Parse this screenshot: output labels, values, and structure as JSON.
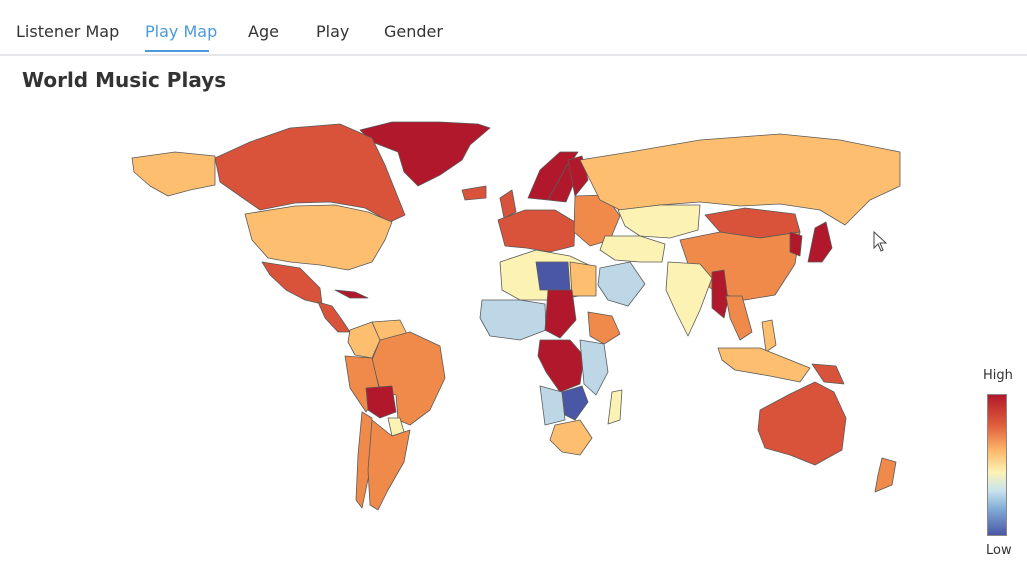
{
  "tabs": [
    {
      "label": "Listener Map",
      "active": false
    },
    {
      "label": "Play Map",
      "active": true
    },
    {
      "label": "Age",
      "active": false
    },
    {
      "label": "Play",
      "active": false
    },
    {
      "label": "Gender",
      "active": false
    }
  ],
  "page": {
    "title": "World Music Plays"
  },
  "legend": {
    "high_label": "High",
    "low_label": "Low"
  },
  "colors": {
    "accent": "#4b9ad9",
    "very_high": "#b2182b",
    "high": "#d9533b",
    "mid_high": "#f08a4b",
    "mid": "#fdbe6f",
    "mid_low": "#fcf2b4",
    "low": "#bdd7e7",
    "very_low": "#4a57a6",
    "no_data": "#f0f0f0"
  },
  "chart_data": {
    "type": "choropleth",
    "title": "World Music Plays",
    "legend_placement": "right",
    "scale": {
      "high_label": "High",
      "low_label": "Low"
    },
    "regions": [
      {
        "name": "Greenland",
        "level": "very-high"
      },
      {
        "name": "Canada",
        "level": "high"
      },
      {
        "name": "Alaska",
        "level": "mid"
      },
      {
        "name": "United States",
        "level": "mid"
      },
      {
        "name": "Mexico",
        "level": "high"
      },
      {
        "name": "Central America",
        "level": "high"
      },
      {
        "name": "Cuba",
        "level": "very-high"
      },
      {
        "name": "Colombia",
        "level": "mid"
      },
      {
        "name": "Venezuela",
        "level": "mid"
      },
      {
        "name": "Brazil",
        "level": "mid-high"
      },
      {
        "name": "Peru",
        "level": "mid-high"
      },
      {
        "name": "Bolivia",
        "level": "very-high"
      },
      {
        "name": "Paraguay",
        "level": "mid-low"
      },
      {
        "name": "Chile",
        "level": "mid-high"
      },
      {
        "name": "Argentina",
        "level": "mid-high"
      },
      {
        "name": "Iceland",
        "level": "high"
      },
      {
        "name": "United Kingdom",
        "level": "high"
      },
      {
        "name": "Norway",
        "level": "very-high"
      },
      {
        "name": "Sweden",
        "level": "very-high"
      },
      {
        "name": "Finland",
        "level": "very-high"
      },
      {
        "name": "Western Europe",
        "level": "high"
      },
      {
        "name": "Eastern Europe",
        "level": "mid-high"
      },
      {
        "name": "Russia",
        "level": "mid"
      },
      {
        "name": "Kazakhstan",
        "level": "mid-low"
      },
      {
        "name": "Mongolia",
        "level": "high"
      },
      {
        "name": "China",
        "level": "mid-high"
      },
      {
        "name": "Korea",
        "level": "very-high"
      },
      {
        "name": "Japan",
        "level": "very-high"
      },
      {
        "name": "Middle East",
        "level": "mid-low"
      },
      {
        "name": "Saudi Arabia",
        "level": "low"
      },
      {
        "name": "India",
        "level": "mid-low"
      },
      {
        "name": "Myanmar",
        "level": "very-high"
      },
      {
        "name": "Southeast Asia",
        "level": "mid-high"
      },
      {
        "name": "Philippines",
        "level": "mid"
      },
      {
        "name": "Indonesia",
        "level": "mid"
      },
      {
        "name": "Papua New Guinea",
        "level": "high"
      },
      {
        "name": "Australia",
        "level": "high"
      },
      {
        "name": "New Zealand",
        "level": "mid-high"
      },
      {
        "name": "North Africa",
        "level": "mid-low"
      },
      {
        "name": "Libya",
        "level": "very-low"
      },
      {
        "name": "Egypt",
        "level": "mid"
      },
      {
        "name": "West Africa",
        "level": "low"
      },
      {
        "name": "Sudan",
        "level": "very-high"
      },
      {
        "name": "Ethiopia",
        "level": "mid-high"
      },
      {
        "name": "DR Congo",
        "level": "very-high"
      },
      {
        "name": "Angola",
        "level": "low"
      },
      {
        "name": "Zambia",
        "level": "very-low"
      },
      {
        "name": "East Africa",
        "level": "low"
      },
      {
        "name": "South Africa",
        "level": "mid"
      },
      {
        "name": "Madagascar",
        "level": "mid-low"
      }
    ]
  }
}
